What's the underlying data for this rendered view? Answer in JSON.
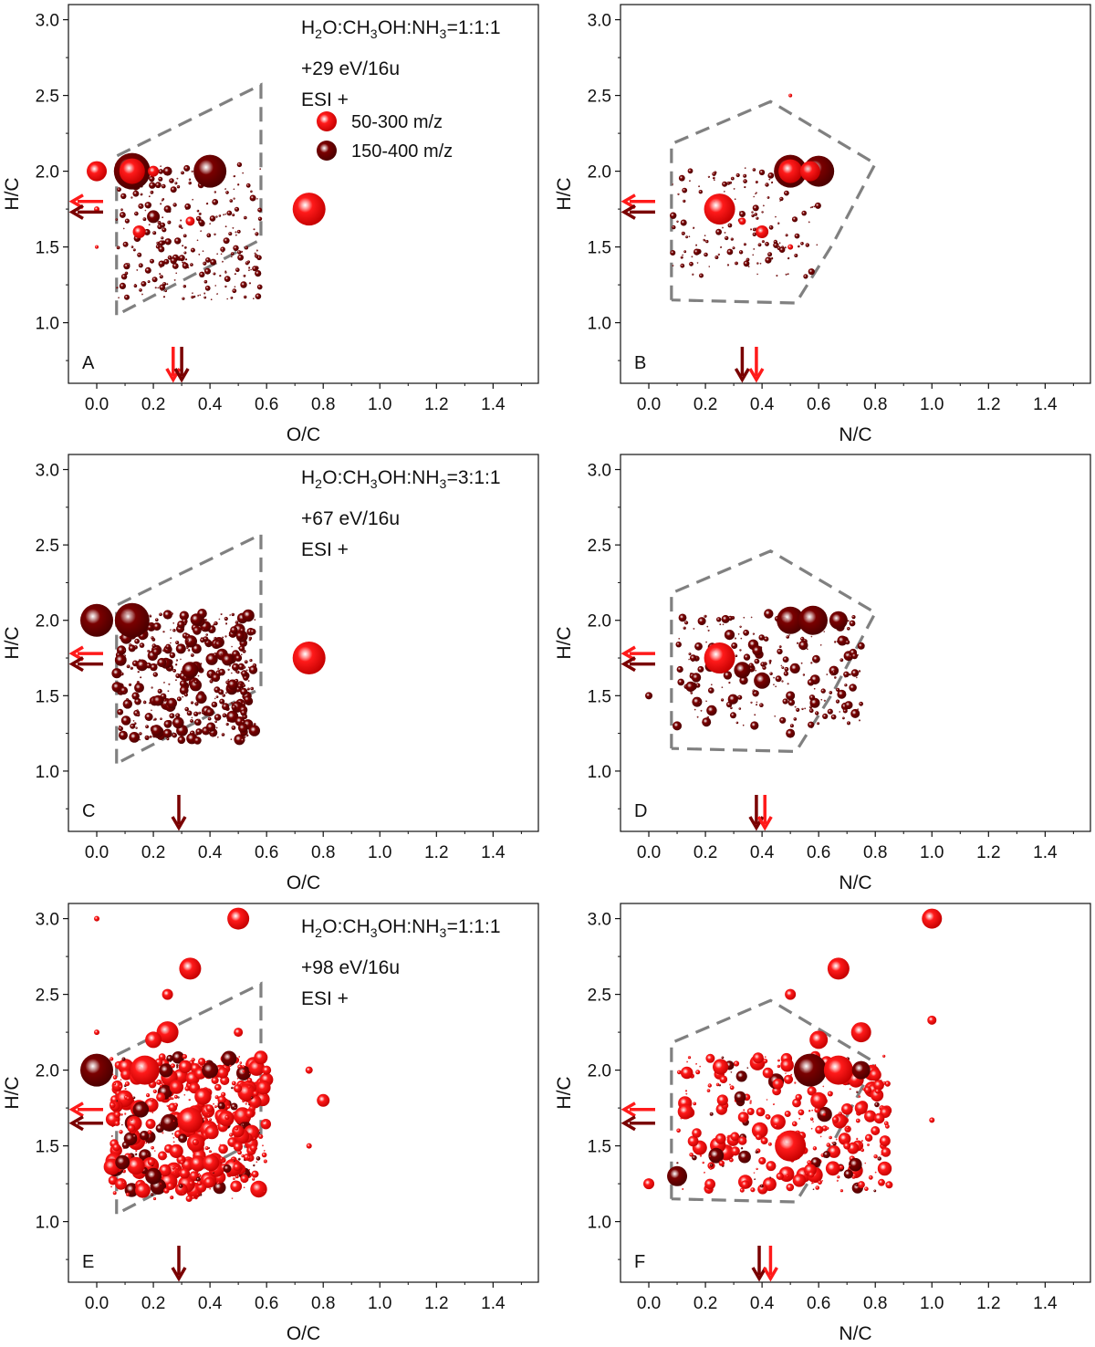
{
  "figure": {
    "legend": {
      "items": [
        {
          "label": "50-300 m/z",
          "color": "#ff1a1a"
        },
        {
          "label": "150-400 m/z",
          "color": "#7a0000"
        }
      ]
    },
    "colors": {
      "light": "#ff1a1a",
      "dark": "#7a0000",
      "frame": "#808080",
      "axis": "#111111"
    }
  },
  "chart_data": [
    {
      "panel": "A",
      "type": "scatter",
      "xlabel": "O/C",
      "ylabel": "H/C",
      "xlim": [
        -0.1,
        1.56
      ],
      "ylim": [
        0.6,
        3.1
      ],
      "xticks": [
        "0.0",
        "0.2",
        "0.4",
        "0.6",
        "0.8",
        "1.0",
        "1.2",
        "1.4"
      ],
      "yticks": [
        "1.0",
        "1.5",
        "2.0",
        "2.5",
        "3.0"
      ],
      "annotation": {
        "title_prefix": "H",
        "title_sub1": "2",
        "title_mid": "O:CH",
        "title_sub2": "3",
        "title_mid2": "OH:NH",
        "title_sub3": "3",
        "title_suffix": "=1:1:1",
        "dose": "+29 eV/16u",
        "mode": "ESI +"
      },
      "frame": [
        [
          0.07,
          1.05
        ],
        [
          0.07,
          2.1
        ],
        [
          0.58,
          2.57
        ],
        [
          0.58,
          1.55
        ],
        [
          0.07,
          1.05
        ]
      ],
      "arrows_h": [
        {
          "y": 1.8,
          "series": "light"
        },
        {
          "y": 1.73,
          "series": "dark"
        }
      ],
      "arrows_v": [
        {
          "x": 0.27,
          "series": "light"
        },
        {
          "x": 0.3,
          "series": "dark"
        }
      ],
      "points": [
        {
          "x": 0.0,
          "y": 2.0,
          "r": 11,
          "series": "light"
        },
        {
          "x": 0.125,
          "y": 2.0,
          "r": 20,
          "series": "dark"
        },
        {
          "x": 0.125,
          "y": 2.0,
          "r": 14,
          "series": "light"
        },
        {
          "x": 0.2,
          "y": 2.0,
          "r": 6,
          "series": "light"
        },
        {
          "x": 0.25,
          "y": 2.0,
          "r": 5,
          "series": "dark"
        },
        {
          "x": 0.4,
          "y": 2.0,
          "r": 18,
          "series": "dark"
        },
        {
          "x": 0.75,
          "y": 1.75,
          "r": 18,
          "series": "light"
        },
        {
          "x": 0.2,
          "y": 1.7,
          "r": 7,
          "series": "dark"
        },
        {
          "x": 0.33,
          "y": 1.67,
          "r": 5,
          "series": "light"
        },
        {
          "x": 0.25,
          "y": 1.75,
          "r": 4,
          "series": "dark"
        },
        {
          "x": 0.15,
          "y": 1.6,
          "r": 7,
          "series": "light"
        },
        {
          "x": 0.0,
          "y": 1.75,
          "r": 3,
          "series": "light"
        },
        {
          "x": 0.0,
          "y": 1.5,
          "r": 2,
          "series": "light"
        }
      ],
      "cloud": {
        "x": [
          0.07,
          0.58
        ],
        "y": [
          1.15,
          2.05
        ],
        "n": 260,
        "rmax": 3,
        "series": "dark",
        "seed": 11
      }
    },
    {
      "panel": "B",
      "type": "scatter",
      "xlabel": "N/C",
      "ylabel": "H/C",
      "xlim": [
        -0.1,
        1.56
      ],
      "ylim": [
        0.6,
        3.1
      ],
      "xticks": [
        "0.0",
        "0.2",
        "0.4",
        "0.6",
        "0.8",
        "1.0",
        "1.2",
        "1.4"
      ],
      "yticks": [
        "1.0",
        "1.5",
        "2.0",
        "2.5",
        "3.0"
      ],
      "frame": [
        [
          0.08,
          1.15
        ],
        [
          0.08,
          2.18
        ],
        [
          0.43,
          2.46
        ],
        [
          0.8,
          2.05
        ],
        [
          0.65,
          1.52
        ],
        [
          0.52,
          1.13
        ],
        [
          0.08,
          1.15
        ]
      ],
      "arrows_h": [
        {
          "y": 1.8,
          "series": "light"
        },
        {
          "y": 1.73,
          "series": "dark"
        }
      ],
      "arrows_v": [
        {
          "x": 0.33,
          "series": "dark"
        },
        {
          "x": 0.38,
          "series": "light"
        }
      ],
      "points": [
        {
          "x": 0.25,
          "y": 1.75,
          "r": 17,
          "series": "light"
        },
        {
          "x": 0.5,
          "y": 2.0,
          "r": 18,
          "series": "dark"
        },
        {
          "x": 0.5,
          "y": 2.0,
          "r": 13,
          "series": "light"
        },
        {
          "x": 0.6,
          "y": 2.0,
          "r": 17,
          "series": "dark"
        },
        {
          "x": 0.57,
          "y": 2.0,
          "r": 11,
          "series": "light"
        },
        {
          "x": 0.4,
          "y": 1.6,
          "r": 7,
          "series": "light"
        },
        {
          "x": 0.33,
          "y": 1.67,
          "r": 4,
          "series": "light"
        },
        {
          "x": 0.5,
          "y": 1.5,
          "r": 3,
          "series": "light"
        },
        {
          "x": 0.5,
          "y": 2.5,
          "r": 2,
          "series": "light"
        }
      ],
      "cloud": {
        "x": [
          0.08,
          0.6
        ],
        "y": [
          1.3,
          2.05
        ],
        "n": 160,
        "rmax": 3,
        "series": "dark",
        "seed": 23
      }
    },
    {
      "panel": "C",
      "type": "scatter",
      "xlabel": "O/C",
      "ylabel": "H/C",
      "xlim": [
        -0.1,
        1.56
      ],
      "ylim": [
        0.6,
        3.1
      ],
      "xticks": [
        "0.0",
        "0.2",
        "0.4",
        "0.6",
        "0.8",
        "1.0",
        "1.2",
        "1.4"
      ],
      "yticks": [
        "1.0",
        "1.5",
        "2.0",
        "2.5",
        "3.0"
      ],
      "annotation": {
        "title_prefix": "H",
        "title_sub1": "2",
        "title_mid": "O:CH",
        "title_sub2": "3",
        "title_mid2": "OH:NH",
        "title_sub3": "3",
        "title_suffix": "=3:1:1",
        "dose": "+67 eV/16u",
        "mode": "ESI +"
      },
      "frame": [
        [
          0.07,
          1.05
        ],
        [
          0.07,
          2.1
        ],
        [
          0.58,
          2.57
        ],
        [
          0.58,
          1.55
        ],
        [
          0.07,
          1.05
        ]
      ],
      "arrows_h": [
        {
          "y": 1.78,
          "series": "light"
        },
        {
          "y": 1.71,
          "series": "dark"
        }
      ],
      "arrows_v": [
        {
          "x": 0.29,
          "series": "dark"
        }
      ],
      "points": [
        {
          "x": 0.0,
          "y": 2.0,
          "r": 18,
          "series": "dark"
        },
        {
          "x": 0.125,
          "y": 2.0,
          "r": 19,
          "series": "dark"
        },
        {
          "x": 0.75,
          "y": 1.75,
          "r": 18,
          "series": "light"
        },
        {
          "x": 0.33,
          "y": 1.67,
          "r": 9,
          "series": "dark"
        },
        {
          "x": 0.25,
          "y": 1.25,
          "r": 5,
          "series": "dark"
        },
        {
          "x": 0.5,
          "y": 1.75,
          "r": 4,
          "series": "dark"
        }
      ],
      "cloud": {
        "x": [
          0.07,
          0.56
        ],
        "y": [
          1.2,
          2.05
        ],
        "n": 420,
        "rmax": 6,
        "series": "dark",
        "seed": 37
      }
    },
    {
      "panel": "D",
      "type": "scatter",
      "xlabel": "N/C",
      "ylabel": "H/C",
      "xlim": [
        -0.1,
        1.56
      ],
      "ylim": [
        0.6,
        3.1
      ],
      "xticks": [
        "0.0",
        "0.2",
        "0.4",
        "0.6",
        "0.8",
        "1.0",
        "1.2",
        "1.4"
      ],
      "yticks": [
        "1.0",
        "1.5",
        "2.0",
        "2.5",
        "3.0"
      ],
      "frame": [
        [
          0.08,
          1.15
        ],
        [
          0.08,
          2.18
        ],
        [
          0.43,
          2.46
        ],
        [
          0.8,
          2.05
        ],
        [
          0.65,
          1.52
        ],
        [
          0.52,
          1.13
        ],
        [
          0.08,
          1.15
        ]
      ],
      "arrows_h": [
        {
          "y": 1.78,
          "series": "light"
        },
        {
          "y": 1.71,
          "series": "dark"
        }
      ],
      "arrows_v": [
        {
          "x": 0.38,
          "series": "dark"
        },
        {
          "x": 0.41,
          "series": "light"
        }
      ],
      "points": [
        {
          "x": 0.25,
          "y": 1.75,
          "r": 17,
          "series": "light"
        },
        {
          "x": 0.5,
          "y": 2.0,
          "r": 15,
          "series": "dark"
        },
        {
          "x": 0.58,
          "y": 2.0,
          "r": 16,
          "series": "dark"
        },
        {
          "x": 0.67,
          "y": 2.0,
          "r": 10,
          "series": "dark"
        },
        {
          "x": 0.4,
          "y": 1.6,
          "r": 9,
          "series": "dark"
        },
        {
          "x": 0.33,
          "y": 1.67,
          "r": 9,
          "series": "dark"
        },
        {
          "x": 0.1,
          "y": 1.3,
          "r": 5,
          "series": "dark"
        },
        {
          "x": 0.0,
          "y": 1.5,
          "r": 4,
          "series": "dark"
        },
        {
          "x": 0.5,
          "y": 1.5,
          "r": 5,
          "series": "dark"
        },
        {
          "x": 0.5,
          "y": 1.25,
          "r": 5,
          "series": "dark"
        },
        {
          "x": 0.75,
          "y": 1.83,
          "r": 4,
          "series": "dark"
        }
      ],
      "cloud": {
        "x": [
          0.1,
          0.75
        ],
        "y": [
          1.3,
          2.05
        ],
        "n": 220,
        "rmax": 5,
        "series": "dark",
        "seed": 51
      }
    },
    {
      "panel": "E",
      "type": "scatter",
      "xlabel": "O/C",
      "ylabel": "H/C",
      "xlim": [
        -0.1,
        1.56
      ],
      "ylim": [
        0.6,
        3.1
      ],
      "xticks": [
        "0.0",
        "0.2",
        "0.4",
        "0.6",
        "0.8",
        "1.0",
        "1.2",
        "1.4"
      ],
      "yticks": [
        "1.0",
        "1.5",
        "2.0",
        "2.5",
        "3.0"
      ],
      "annotation": {
        "title_prefix": "H",
        "title_sub1": "2",
        "title_mid": "O:CH",
        "title_sub2": "3",
        "title_mid2": "OH:NH",
        "title_sub3": "3",
        "title_suffix": "=1:1:1",
        "dose": "+98 eV/16u",
        "mode": "ESI +"
      },
      "frame": [
        [
          0.07,
          1.05
        ],
        [
          0.07,
          2.1
        ],
        [
          0.58,
          2.57
        ],
        [
          0.58,
          1.55
        ],
        [
          0.07,
          1.05
        ]
      ],
      "arrows_h": [
        {
          "y": 1.74,
          "series": "light"
        },
        {
          "y": 1.65,
          "series": "dark"
        }
      ],
      "arrows_v": [
        {
          "x": 0.29,
          "series": "dark"
        }
      ],
      "points": [
        {
          "x": 0.0,
          "y": 2.0,
          "r": 18,
          "series": "dark"
        },
        {
          "x": 0.17,
          "y": 2.0,
          "r": 16,
          "series": "light"
        },
        {
          "x": 0.5,
          "y": 3.0,
          "r": 12,
          "series": "light"
        },
        {
          "x": 0.33,
          "y": 2.67,
          "r": 12,
          "series": "light"
        },
        {
          "x": 0.25,
          "y": 2.25,
          "r": 12,
          "series": "light"
        },
        {
          "x": 0.2,
          "y": 2.2,
          "r": 9,
          "series": "light"
        },
        {
          "x": 0.4,
          "y": 2.0,
          "r": 9,
          "series": "dark"
        },
        {
          "x": 0.2,
          "y": 1.3,
          "r": 9,
          "series": "dark"
        },
        {
          "x": 0.33,
          "y": 1.67,
          "r": 14,
          "series": "light"
        },
        {
          "x": 0.8,
          "y": 1.8,
          "r": 7,
          "series": "light"
        },
        {
          "x": 0.25,
          "y": 2.5,
          "r": 6,
          "series": "light"
        },
        {
          "x": 0.0,
          "y": 3.0,
          "r": 3,
          "series": "light"
        },
        {
          "x": 0.6,
          "y": 2.0,
          "r": 5,
          "series": "light"
        },
        {
          "x": 0.75,
          "y": 2.0,
          "r": 4,
          "series": "light"
        },
        {
          "x": 0.5,
          "y": 2.25,
          "r": 5,
          "series": "light"
        },
        {
          "x": 0.75,
          "y": 1.5,
          "r": 3,
          "series": "light"
        },
        {
          "x": 0.0,
          "y": 2.25,
          "r": 3,
          "series": "light"
        }
      ],
      "cloud": {
        "x": [
          0.05,
          0.6
        ],
        "y": [
          1.15,
          2.1
        ],
        "n": 520,
        "rmax": 9,
        "series": "light",
        "seed": 67
      }
    },
    {
      "panel": "F",
      "type": "scatter",
      "xlabel": "N/C",
      "ylabel": "H/C",
      "xlim": [
        -0.1,
        1.56
      ],
      "ylim": [
        0.6,
        3.1
      ],
      "xticks": [
        "0.0",
        "0.2",
        "0.4",
        "0.6",
        "0.8",
        "1.0",
        "1.2",
        "1.4"
      ],
      "yticks": [
        "1.0",
        "1.5",
        "2.0",
        "2.5",
        "3.0"
      ],
      "frame": [
        [
          0.08,
          1.15
        ],
        [
          0.08,
          2.18
        ],
        [
          0.43,
          2.46
        ],
        [
          0.8,
          2.05
        ],
        [
          0.65,
          1.52
        ],
        [
          0.52,
          1.13
        ],
        [
          0.08,
          1.15
        ]
      ],
      "arrows_h": [
        {
          "y": 1.74,
          "series": "light"
        },
        {
          "y": 1.65,
          "series": "dark"
        }
      ],
      "arrows_v": [
        {
          "x": 0.39,
          "series": "dark"
        },
        {
          "x": 0.43,
          "series": "light"
        }
      ],
      "points": [
        {
          "x": 1.0,
          "y": 3.0,
          "r": 11,
          "series": "light"
        },
        {
          "x": 0.67,
          "y": 2.67,
          "r": 12,
          "series": "light"
        },
        {
          "x": 0.57,
          "y": 2.0,
          "r": 18,
          "series": "dark"
        },
        {
          "x": 0.67,
          "y": 2.0,
          "r": 16,
          "series": "light"
        },
        {
          "x": 0.75,
          "y": 2.0,
          "r": 10,
          "series": "dark"
        },
        {
          "x": 0.5,
          "y": 1.5,
          "r": 17,
          "series": "light"
        },
        {
          "x": 0.1,
          "y": 1.3,
          "r": 11,
          "series": "dark"
        },
        {
          "x": 0.0,
          "y": 1.25,
          "r": 6,
          "series": "light"
        },
        {
          "x": 0.75,
          "y": 2.25,
          "r": 11,
          "series": "light"
        },
        {
          "x": 0.6,
          "y": 2.2,
          "r": 10,
          "series": "light"
        },
        {
          "x": 0.5,
          "y": 2.5,
          "r": 6,
          "series": "light"
        },
        {
          "x": 1.0,
          "y": 2.33,
          "r": 5,
          "series": "light"
        },
        {
          "x": 1.0,
          "y": 1.67,
          "r": 3,
          "series": "light"
        },
        {
          "x": 0.75,
          "y": 1.75,
          "r": 7,
          "series": "light"
        },
        {
          "x": 0.8,
          "y": 1.6,
          "r": 5,
          "series": "light"
        },
        {
          "x": 0.7,
          "y": 1.5,
          "r": 4,
          "series": "light"
        },
        {
          "x": 0.6,
          "y": 1.8,
          "r": 9,
          "series": "light"
        }
      ],
      "cloud": {
        "x": [
          0.1,
          0.85
        ],
        "y": [
          1.2,
          2.1
        ],
        "n": 300,
        "rmax": 8,
        "series": "light",
        "seed": 89
      }
    }
  ]
}
